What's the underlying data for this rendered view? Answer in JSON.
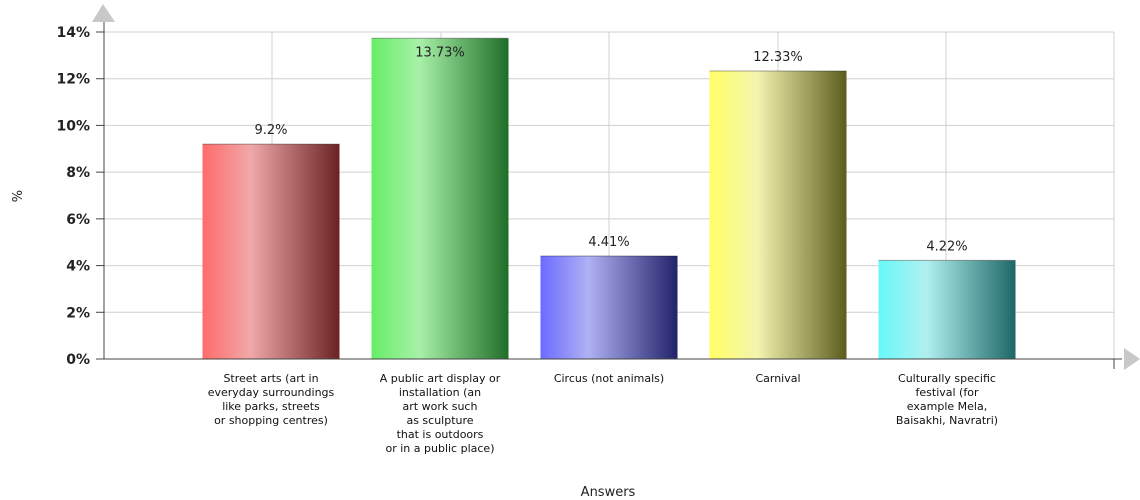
{
  "chart_data": {
    "type": "bar",
    "title": "",
    "xlabel": "Answers",
    "ylabel": "%",
    "ylim": [
      0,
      14
    ],
    "yticks": [
      "0%",
      "2%",
      "4%",
      "6%",
      "8%",
      "10%",
      "12%",
      "14%"
    ],
    "ytick_values": [
      0,
      2,
      4,
      6,
      8,
      10,
      12,
      14
    ],
    "grid": true,
    "legend": "none",
    "categories": [
      [
        "Street arts (art in",
        "everyday surroundings",
        "like parks, streets",
        "or shopping centres)"
      ],
      [
        "A public art display or",
        "installation (an",
        "art work such",
        "as sculpture",
        "that is outdoors",
        "or in a public place)"
      ],
      [
        "Circus (not animals)"
      ],
      [
        "Carnival"
      ],
      [
        "Culturally specific",
        "festival (for",
        "example Mela,",
        "Baisakhi, Navratri)"
      ]
    ],
    "values": [
      9.2,
      13.73,
      4.41,
      12.33,
      4.22
    ],
    "value_labels": [
      "9.2%",
      "13.73%",
      "4.41%",
      "12.33%",
      "4.22%"
    ],
    "colors": [
      {
        "light": "#ff6b6b",
        "mid": "#f0a8a8",
        "dark": "#6a2222"
      },
      {
        "light": "#66ee66",
        "mid": "#a8f0a8",
        "dark": "#1f6e28"
      },
      {
        "light": "#6b6bff",
        "mid": "#b0b0f4",
        "dark": "#22226a"
      },
      {
        "light": "#ffff66",
        "mid": "#f4f4b0",
        "dark": "#5c5c1e"
      },
      {
        "light": "#66f8f8",
        "mid": "#b0f0f0",
        "dark": "#1e6666"
      }
    ]
  }
}
